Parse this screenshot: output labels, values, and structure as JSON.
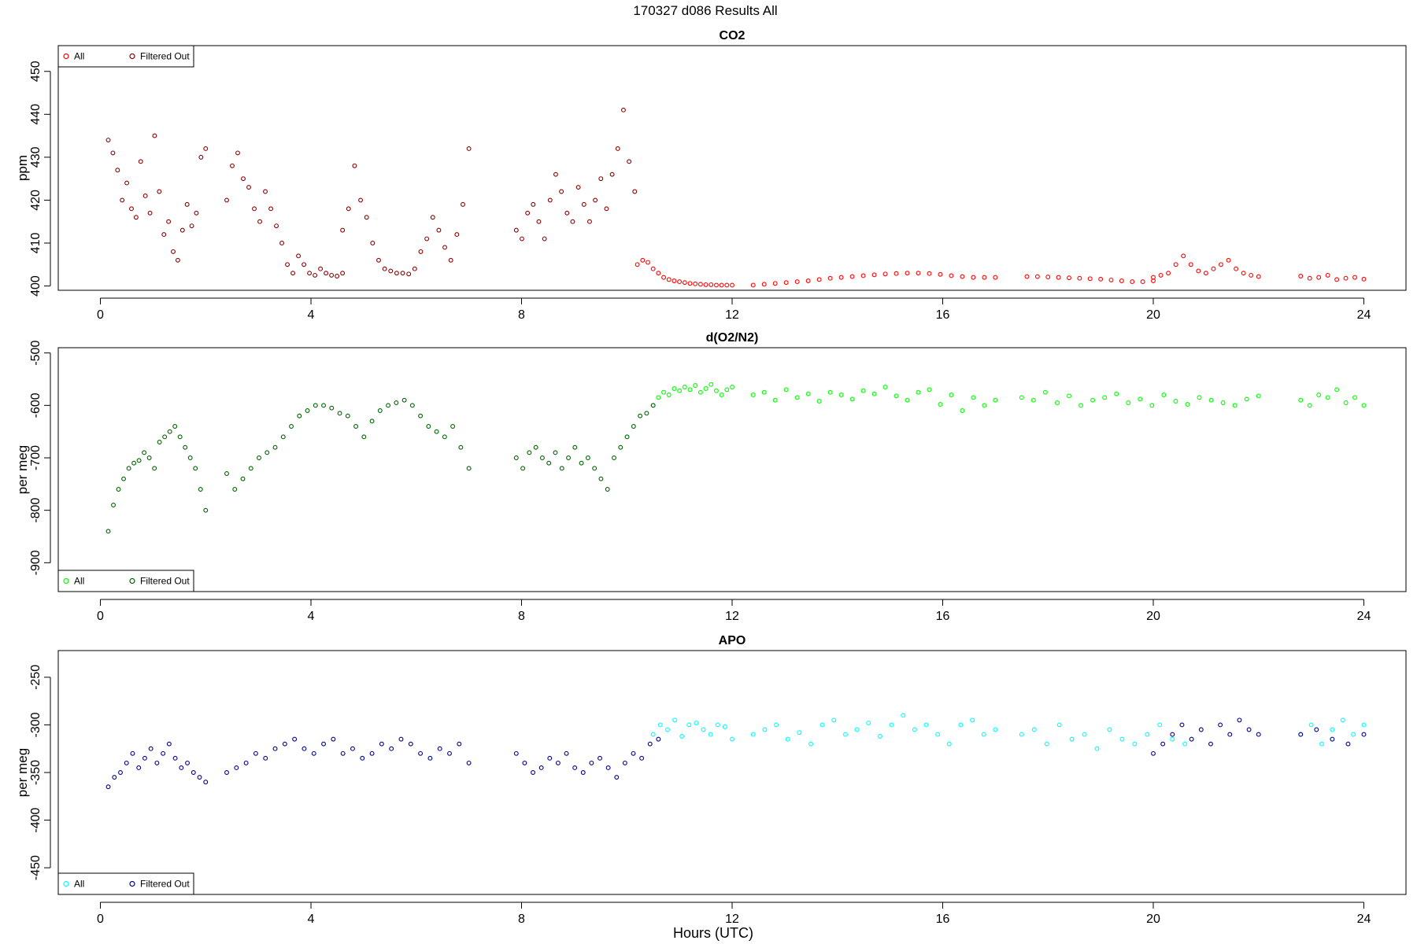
{
  "page_title": "170327   d086   Results All",
  "x_axis_title": "Hours (UTC)",
  "colors": {
    "co2_all": "#ff0000",
    "co2_filtered": "#8b0000",
    "o2_all": "#00ff00",
    "o2_filtered": "#006400",
    "apo_all": "#00ffff",
    "apo_filtered": "#00008b"
  },
  "chart_data": [
    {
      "type": "scatter",
      "title": "CO2",
      "xlabel": "Hours (UTC)",
      "ylabel": "ppm",
      "xlim": [
        -0.8,
        24.8
      ],
      "ylim": [
        399,
        456
      ],
      "x_ticks": [
        0,
        4,
        8,
        12,
        16,
        20,
        24
      ],
      "x_tick_labels": [
        "0",
        "4",
        "8",
        "12",
        "16",
        "20",
        "24"
      ],
      "y_ticks": [
        400,
        410,
        420,
        430,
        440,
        450
      ],
      "y_tick_labels": [
        "400",
        "410",
        "420",
        "430",
        "440",
        "450"
      ],
      "legend": {
        "position": "top-left",
        "entries": [
          "All",
          "Filtered Out"
        ]
      },
      "series": [
        {
          "name": "All",
          "color": "#ff0000",
          "segments": [
            {
              "x_start": 10.2,
              "x_end": 12.0,
              "values": [
                405,
                406,
                405.5,
                404,
                403,
                402,
                401.5,
                401.2,
                401,
                400.8,
                400.6,
                400.5,
                400.4,
                400.3,
                400.3,
                400.2,
                400.2,
                400.2,
                400.2
              ]
            },
            {
              "x_start": 12.4,
              "x_end": 17.0,
              "values": [
                400.2,
                400.4,
                400.6,
                400.8,
                401,
                401.2,
                401.5,
                401.8,
                402,
                402.2,
                402.4,
                402.6,
                402.8,
                402.9,
                403,
                403,
                402.9,
                402.7,
                402.4,
                402.2,
                402,
                402,
                402
              ]
            },
            {
              "x_start": 17.6,
              "x_end": 20.0,
              "values": [
                402.2,
                402.2,
                402.1,
                402,
                401.9,
                401.8,
                401.7,
                401.6,
                401.4,
                401.2,
                401,
                401,
                401.2
              ]
            },
            {
              "x_start": 20.0,
              "x_end": 22.0,
              "values": [
                402,
                402.5,
                403,
                405,
                407,
                405,
                403.5,
                403,
                404,
                405,
                406,
                404,
                403,
                402.5,
                402.2
              ]
            },
            {
              "x_start": 22.8,
              "x_end": 24.0,
              "values": [
                402.3,
                401.8,
                402,
                402.5,
                401.5,
                401.8,
                402,
                401.6
              ]
            }
          ]
        },
        {
          "name": "Filtered Out",
          "color": "#8b0000",
          "segments": [
            {
              "x_start": 0.15,
              "x_end": 2.0,
              "values": [
                434,
                431,
                427,
                420,
                424,
                418,
                416,
                429,
                421,
                417,
                435,
                422,
                412,
                415,
                408,
                406,
                413,
                419,
                414,
                417,
                430,
                432
              ]
            },
            {
              "x_start": 2.4,
              "x_end": 4.6,
              "values": [
                420,
                428,
                431,
                425,
                423,
                418,
                415,
                422,
                418,
                414,
                410,
                405,
                403,
                407,
                405,
                403,
                402.5,
                404,
                403,
                402.5,
                402.3,
                403
              ]
            },
            {
              "x_start": 4.6,
              "x_end": 7.0,
              "values": [
                413,
                418,
                428,
                420,
                416,
                410,
                406,
                404,
                403.5,
                403,
                403,
                402.8,
                404,
                408,
                411,
                416,
                413,
                409,
                406,
                412,
                419,
                432
              ]
            },
            {
              "x_start": 7.9,
              "x_end": 10.15,
              "values": [
                413,
                411,
                417,
                419,
                415,
                411,
                420,
                426,
                422,
                417,
                415,
                423,
                419,
                415,
                420,
                425,
                418,
                426,
                432,
                441,
                429,
                422
              ]
            }
          ]
        }
      ]
    },
    {
      "type": "scatter",
      "title": "d(O2/N2)",
      "xlabel": "Hours (UTC)",
      "ylabel": "per meg",
      "xlim": [
        -0.8,
        24.8
      ],
      "ylim": [
        -955,
        -490
      ],
      "x_ticks": [
        0,
        4,
        8,
        12,
        16,
        20,
        24
      ],
      "x_tick_labels": [
        "0",
        "4",
        "8",
        "12",
        "16",
        "20",
        "24"
      ],
      "y_ticks": [
        -900,
        -800,
        -700,
        -600,
        -500
      ],
      "y_tick_labels": [
        "-900",
        "-800",
        "-700",
        "-600",
        "-500"
      ],
      "legend": {
        "position": "bottom-left",
        "entries": [
          "All",
          "Filtered Out"
        ]
      },
      "series": [
        {
          "name": "All",
          "color": "#00ff00",
          "segments": [
            {
              "x_start": 10.5,
              "x_end": 12.0,
              "values": [
                -600,
                -585,
                -575,
                -580,
                -568,
                -572,
                -565,
                -570,
                -562,
                -575,
                -568,
                -560,
                -572,
                -580,
                -570,
                -565
              ]
            },
            {
              "x_start": 12.4,
              "x_end": 17.0,
              "values": [
                -580,
                -575,
                -590,
                -570,
                -585,
                -578,
                -592,
                -575,
                -580,
                -588,
                -572,
                -578,
                -565,
                -582,
                -590,
                -575,
                -570,
                -598,
                -580,
                -610,
                -585,
                -600,
                -590
              ]
            },
            {
              "x_start": 17.5,
              "x_end": 22.0,
              "values": [
                -585,
                -590,
                -575,
                -595,
                -582,
                -600,
                -590,
                -585,
                -578,
                -595,
                -588,
                -600,
                -580,
                -592,
                -598,
                -585,
                -590,
                -595,
                -600,
                -588,
                -582
              ]
            },
            {
              "x_start": 22.8,
              "x_end": 24.0,
              "values": [
                -590,
                -600,
                -580,
                -585,
                -570,
                -595,
                -585,
                -600
              ]
            }
          ]
        },
        {
          "name": "Filtered Out",
          "color": "#006400",
          "segments": [
            {
              "x_start": 0.15,
              "x_end": 2.0,
              "values": [
                -840,
                -790,
                -760,
                -740,
                -720,
                -710,
                -705,
                -690,
                -700,
                -720,
                -670,
                -660,
                -650,
                -640,
                -660,
                -680,
                -700,
                -720,
                -760,
                -800
              ]
            },
            {
              "x_start": 2.4,
              "x_end": 7.0,
              "values": [
                -730,
                -760,
                -740,
                -720,
                -700,
                -690,
                -680,
                -660,
                -640,
                -620,
                -610,
                -600,
                -600,
                -605,
                -615,
                -620,
                -640,
                -660,
                -630,
                -610,
                -600,
                -595,
                -590,
                -600,
                -620,
                -640,
                -650,
                -660,
                -640,
                -680,
                -720
              ]
            },
            {
              "x_start": 7.9,
              "x_end": 10.5,
              "values": [
                -700,
                -720,
                -690,
                -680,
                -700,
                -710,
                -690,
                -720,
                -700,
                -680,
                -710,
                -700,
                -720,
                -740,
                -760,
                -700,
                -680,
                -660,
                -640,
                -620,
                -615,
                -600
              ]
            }
          ]
        }
      ]
    },
    {
      "type": "scatter",
      "title": "APO",
      "xlabel": "Hours (UTC)",
      "ylabel": "per meg",
      "xlim": [
        -0.8,
        24.8
      ],
      "ylim": [
        -478,
        -222
      ],
      "x_ticks": [
        0,
        4,
        8,
        12,
        16,
        20,
        24
      ],
      "x_tick_labels": [
        "0",
        "4",
        "8",
        "12",
        "16",
        "20",
        "24"
      ],
      "y_ticks": [
        -450,
        -400,
        -350,
        -300,
        -250
      ],
      "y_tick_labels": [
        "-450",
        "-400",
        "-350",
        "-300",
        "-250"
      ],
      "legend": {
        "position": "bottom-left",
        "entries": [
          "All",
          "Filtered Out"
        ]
      },
      "series": [
        {
          "name": "All",
          "color": "#00ffff",
          "segments": [
            {
              "x_start": 10.5,
              "x_end": 12.0,
              "values": [
                -310,
                -300,
                -305,
                -295,
                -312,
                -300,
                -298,
                -305,
                -310,
                -300,
                -302,
                -315
              ]
            },
            {
              "x_start": 12.4,
              "x_end": 17.0,
              "values": [
                -310,
                -305,
                -300,
                -315,
                -308,
                -320,
                -300,
                -295,
                -310,
                -305,
                -298,
                -312,
                -300,
                -290,
                -305,
                -300,
                -310,
                -320,
                -300,
                -295,
                -310,
                -305
              ]
            },
            {
              "x_start": 17.5,
              "x_end": 20.6,
              "values": [
                -310,
                -305,
                -320,
                -300,
                -315,
                -310,
                -325,
                -305,
                -315,
                -320,
                -310,
                -300,
                -315,
                -320
              ]
            },
            {
              "x_start": 22.8,
              "x_end": 24.0,
              "values": [
                -310,
                -300,
                -320,
                -305,
                -295,
                -310,
                -300
              ]
            }
          ]
        },
        {
          "name": "Filtered Out",
          "color": "#00008b",
          "segments": [
            {
              "x_start": 0.15,
              "x_end": 2.0,
              "values": [
                -365,
                -355,
                -350,
                -340,
                -330,
                -345,
                -335,
                -325,
                -340,
                -330,
                -320,
                -335,
                -345,
                -340,
                -350,
                -355,
                -360
              ]
            },
            {
              "x_start": 2.4,
              "x_end": 7.0,
              "values": [
                -350,
                -345,
                -340,
                -330,
                -335,
                -325,
                -320,
                -315,
                -325,
                -330,
                -320,
                -315,
                -330,
                -325,
                -335,
                -330,
                -320,
                -325,
                -315,
                -320,
                -330,
                -335,
                -325,
                -330,
                -320,
                -340
              ]
            },
            {
              "x_start": 7.9,
              "x_end": 10.6,
              "values": [
                -330,
                -340,
                -350,
                -345,
                -335,
                -340,
                -330,
                -345,
                -350,
                -340,
                -335,
                -345,
                -355,
                -340,
                -330,
                -335,
                -320,
                -315
              ]
            },
            {
              "x_start": 20.0,
              "x_end": 22.0,
              "values": [
                -330,
                -320,
                -310,
                -300,
                -315,
                -305,
                -320,
                -300,
                -310,
                -295,
                -305,
                -310
              ]
            },
            {
              "x_start": 22.8,
              "x_end": 24.0,
              "values": [
                -310,
                -305,
                -315,
                -320,
                -310
              ]
            }
          ]
        }
      ]
    }
  ]
}
